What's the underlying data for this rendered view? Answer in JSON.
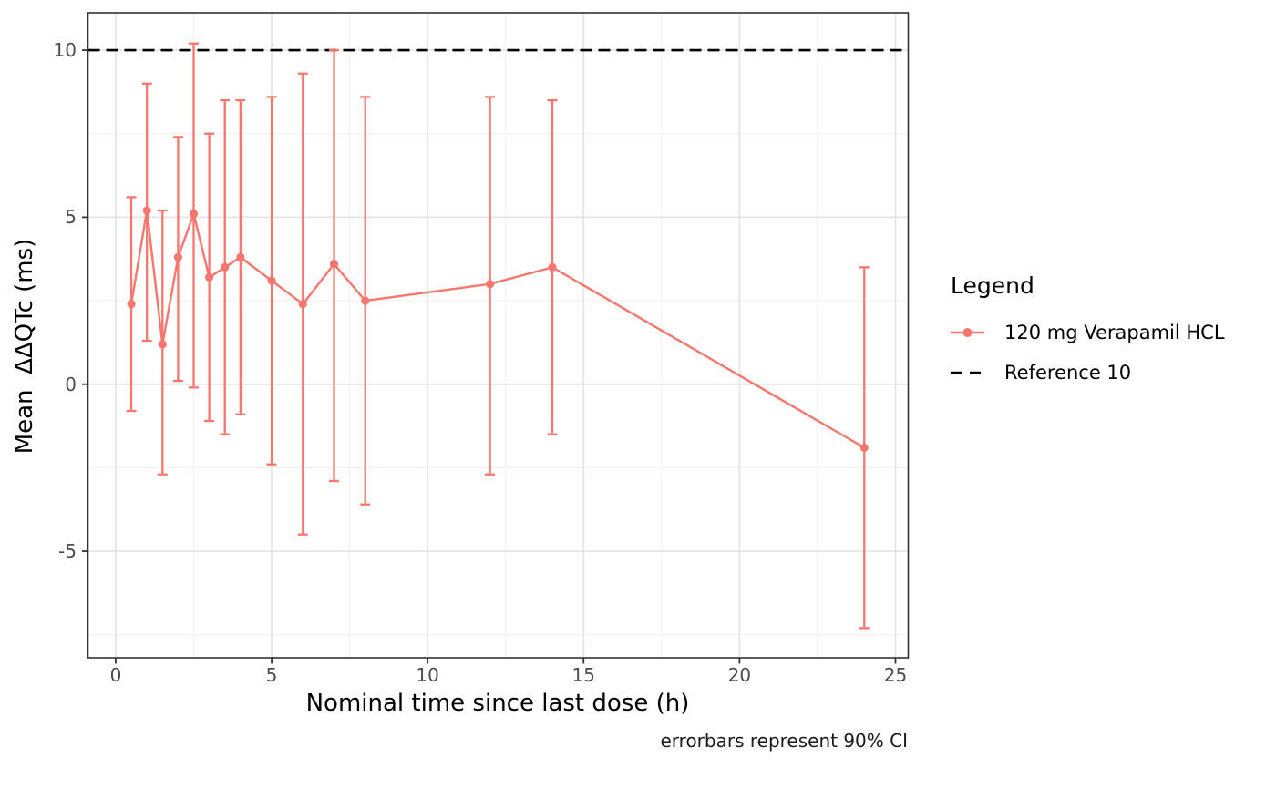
{
  "chart_data": {
    "type": "line",
    "title": "",
    "xlabel": "Nominal time since last dose (h)",
    "ylabel": "Mean  ΔΔQTc (ms)",
    "caption": "errorbars represent 90% CI",
    "x_ticks": [
      0,
      5,
      10,
      15,
      20,
      25
    ],
    "y_ticks": [
      -5,
      0,
      5,
      10
    ],
    "x_minor_ticks": [
      2.5,
      7.5,
      12.5,
      17.5,
      22.5
    ],
    "y_minor_ticks": [
      -7.5,
      -2.5,
      2.5,
      7.5
    ],
    "xlim": [
      -0.89,
      25.41
    ],
    "ylim": [
      -8.19,
      11.12
    ],
    "grid": true,
    "legend_position": "right",
    "reference_line": {
      "y": 10,
      "label": "Reference 10",
      "color": "#000000",
      "style": "dashed"
    },
    "series": [
      {
        "name": "120 mg Verapamil HCL",
        "color": "#F8766D",
        "points": [
          {
            "x": 0.5,
            "y": 2.4,
            "lo": -0.8,
            "hi": 5.6
          },
          {
            "x": 1,
            "y": 5.2,
            "lo": 1.3,
            "hi": 9.0
          },
          {
            "x": 1.5,
            "y": 1.2,
            "lo": -2.7,
            "hi": 5.2
          },
          {
            "x": 2,
            "y": 3.8,
            "lo": 0.1,
            "hi": 7.4
          },
          {
            "x": 2.5,
            "y": 5.1,
            "lo": -0.1,
            "hi": 10.2
          },
          {
            "x": 3,
            "y": 3.2,
            "lo": -1.1,
            "hi": 7.5
          },
          {
            "x": 3.5,
            "y": 3.5,
            "lo": -1.5,
            "hi": 8.5
          },
          {
            "x": 4,
            "y": 3.8,
            "lo": -0.9,
            "hi": 8.5
          },
          {
            "x": 5,
            "y": 3.1,
            "lo": -2.4,
            "hi": 8.6
          },
          {
            "x": 6,
            "y": 2.4,
            "lo": -4.5,
            "hi": 9.3
          },
          {
            "x": 7,
            "y": 3.6,
            "lo": -2.9,
            "hi": 10.0
          },
          {
            "x": 8,
            "y": 2.5,
            "lo": -3.6,
            "hi": 8.6
          },
          {
            "x": 12,
            "y": 3.0,
            "lo": -2.7,
            "hi": 8.6
          },
          {
            "x": 14,
            "y": 3.5,
            "lo": -1.5,
            "hi": 8.5
          },
          {
            "x": 24,
            "y": -1.9,
            "lo": -7.3,
            "hi": 3.5
          }
        ]
      }
    ]
  },
  "legend": {
    "title": "Legend",
    "items": [
      {
        "label": "120 mg Verapamil HCL",
        "key": "line-with-point",
        "color": "#F8766D"
      },
      {
        "label": "Reference 10",
        "key": "dashed-line",
        "color": "#000000"
      }
    ]
  },
  "style_colors": {
    "series": "#F8766D",
    "reference": "#000000",
    "panel_border": "#333333",
    "grid_major": "#E4E4E4",
    "grid_minor": "#F2F2F2",
    "tick_text": "#4D4D4D"
  }
}
